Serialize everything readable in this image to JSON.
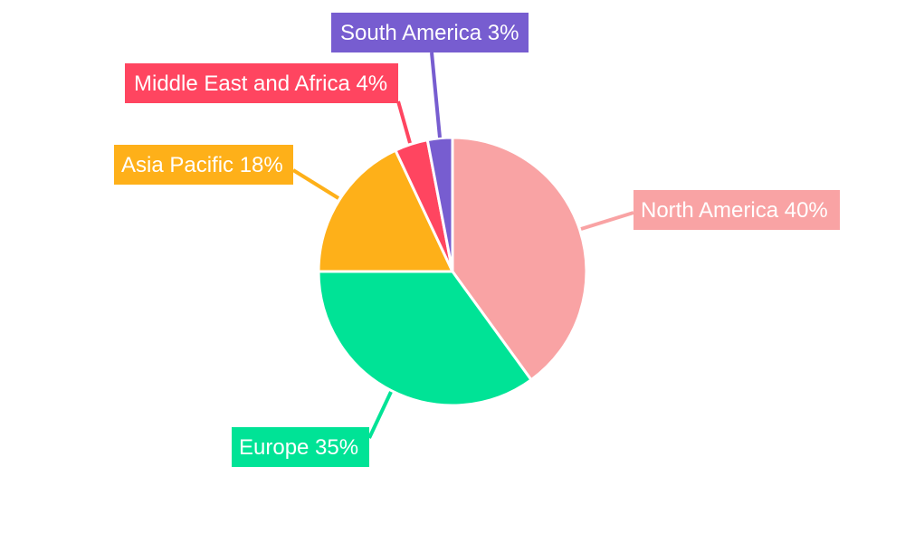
{
  "chart_data": {
    "type": "pie",
    "title": "",
    "start_angle": "top, clockwise",
    "slices": [
      {
        "label": "North America",
        "value": 40,
        "text": "North America 40%",
        "color": "#F9A3A4"
      },
      {
        "label": "Europe",
        "value": 35,
        "text": "Europe 35%",
        "color": "#00E396"
      },
      {
        "label": "Asia Pacific",
        "value": 18,
        "text": "Asia Pacific 18%",
        "color": "#FEB019"
      },
      {
        "label": "Middle East and Africa",
        "value": 4,
        "text": "Middle East and Africa 4%",
        "color": "#FF4560"
      },
      {
        "label": "South America",
        "value": 3,
        "text": "South America 3%",
        "color": "#775DD0"
      }
    ]
  }
}
